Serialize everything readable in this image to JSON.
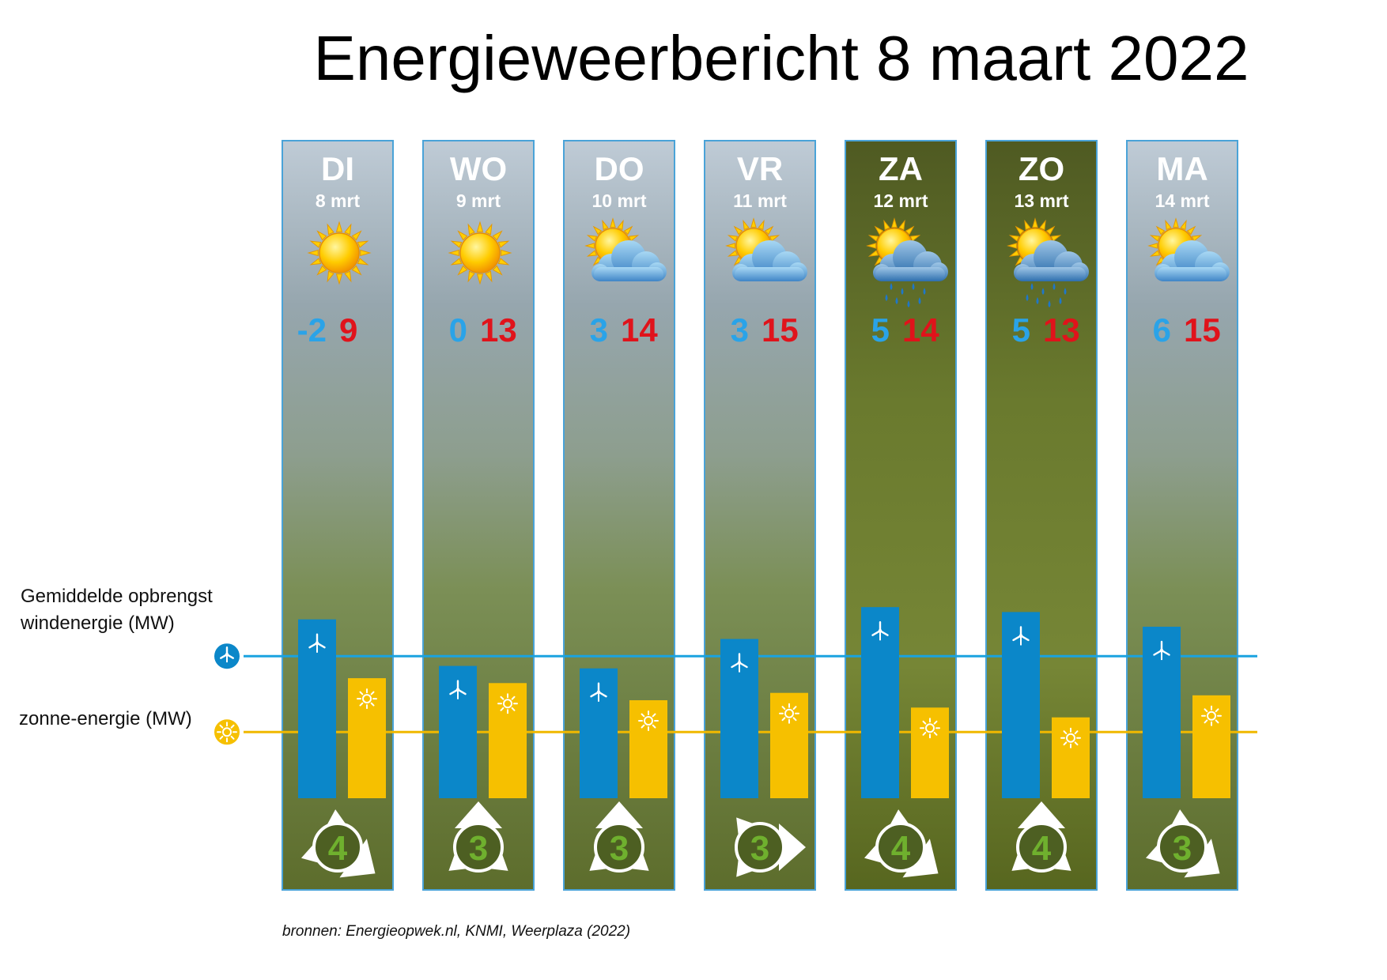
{
  "title": "Energieweerbericht 8 maart 2022",
  "legend": {
    "wind_line1": "Gemiddelde opbrengst",
    "wind_line2": "windenergie (MW)",
    "solar": "zonne-energie (MW)"
  },
  "sources": "bronnen: Energieopwek.nl, KNMI, Weerplaza (2022)",
  "colors": {
    "wind": "#0b87c9",
    "solar": "#f6c000",
    "wind_avg_line": "#1aa3e0",
    "solar_avg_line": "#f0b800",
    "min_temp": "#2aa3e8",
    "max_temp": "#e0131b",
    "wind_force": "#6fb02e"
  },
  "chart_data": {
    "type": "bar",
    "categories": [
      "DI",
      "WO",
      "DO",
      "VR",
      "ZA",
      "ZO",
      "MA"
    ],
    "dates": [
      "8 mrt",
      "9 mrt",
      "10 mrt",
      "11 mrt",
      "12 mrt",
      "13 mrt",
      "14 mrt"
    ],
    "weather_icons": [
      "sun",
      "sun",
      "sun-cloud",
      "sun-cloud",
      "sun-cloud-rain",
      "sun-cloud-rain",
      "sun-cloud"
    ],
    "weekend": [
      false,
      false,
      false,
      false,
      true,
      true,
      false
    ],
    "min_temp": [
      "-2",
      "0",
      "3",
      "3",
      "5",
      "5",
      "6"
    ],
    "max_temp": [
      "9",
      "13",
      "14",
      "15",
      "14",
      "13",
      "15"
    ],
    "wind_force": [
      "4",
      "3",
      "3",
      "3",
      "4",
      "4",
      "3"
    ],
    "wind_direction": [
      "southeast",
      "north",
      "north",
      "east",
      "southeast",
      "north",
      "southeast"
    ],
    "series": [
      {
        "name": "windenergie (MW)",
        "values": [
          73,
          54,
          53,
          65,
          78,
          76,
          70
        ]
      },
      {
        "name": "zonne-energie (MW)",
        "values": [
          49,
          47,
          40,
          43,
          37,
          33,
          42
        ]
      }
    ],
    "average_lines": {
      "wind": 58,
      "solar": 27
    },
    "ylim": [
      0,
      100
    ]
  }
}
